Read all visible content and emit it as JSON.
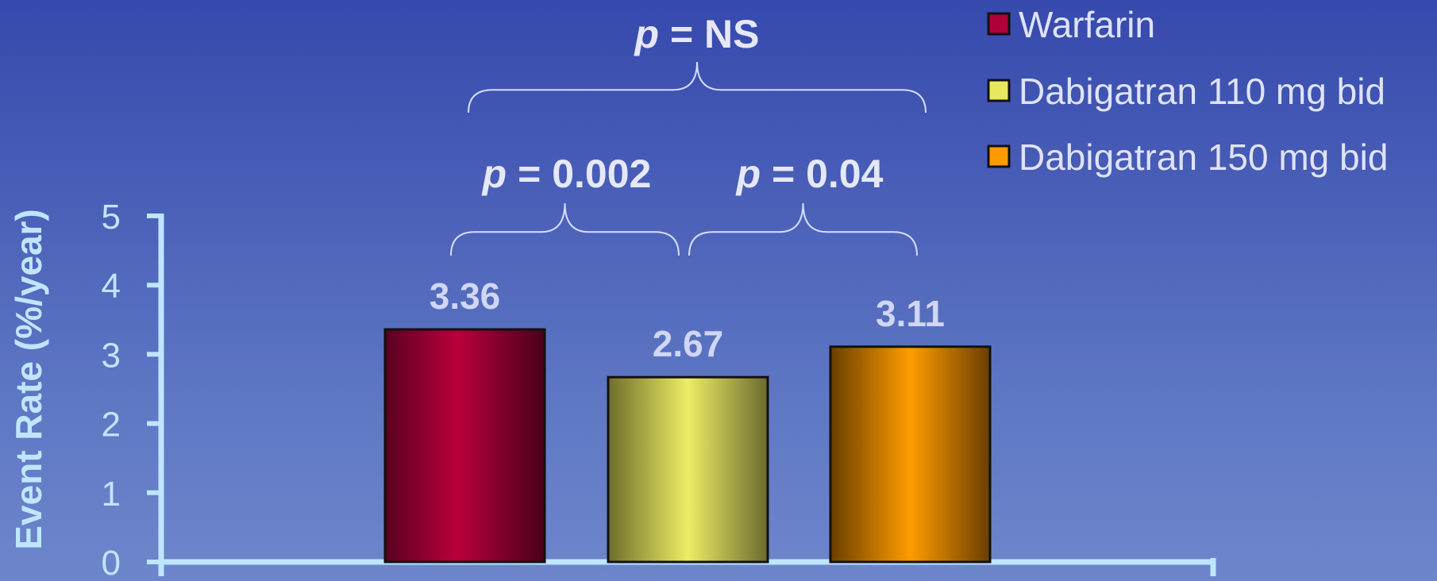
{
  "chart_data": {
    "type": "bar",
    "categories": [
      "Warfarin",
      "Dabigatran 110 mg bid",
      "Dabigatran 150 mg bid"
    ],
    "values": [
      3.36,
      2.67,
      3.11
    ],
    "data_labels": [
      "3.36",
      "2.67",
      "3.11"
    ],
    "ylabel": "Event Rate (%/year)",
    "xlabel": "",
    "ylim": [
      0,
      5
    ],
    "yticks": [
      0,
      1,
      2,
      3,
      4,
      5
    ],
    "ytick_labels": [
      "0",
      "1",
      "2",
      "3",
      "4",
      "5"
    ],
    "colors": [
      "#b0003a",
      "#e8e860",
      "#ff9a00"
    ],
    "legend": {
      "placement": "top-right",
      "entries": [
        {
          "label": "Warfarin",
          "color": "#b0003a"
        },
        {
          "label": "Dabigatran 110 mg bid",
          "color": "#e8e860"
        },
        {
          "label": "Dabigatran 150 mg bid",
          "color": "#ff9a00"
        }
      ]
    },
    "annotations": [
      {
        "p_symbol": "p",
        "text": " = NS",
        "between": [
          "Warfarin",
          "Dabigatran 150 mg bid"
        ]
      },
      {
        "p_symbol": "p",
        "text": " = 0.002",
        "between": [
          "Warfarin",
          "Dabigatran 110 mg bid"
        ]
      },
      {
        "p_symbol": "p",
        "text": " = 0.04",
        "between": [
          "Dabigatran 110 mg bid",
          "Dabigatran 150 mg bid"
        ]
      }
    ],
    "grid": false
  }
}
